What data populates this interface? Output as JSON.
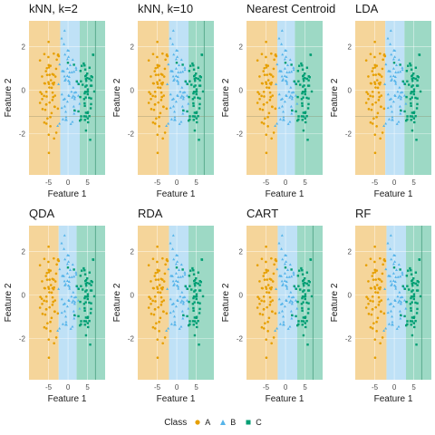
{
  "chart_data": {
    "type": "scatter",
    "colors": {
      "A": "#E69F00",
      "B": "#56B4E9",
      "C": "#009E73",
      "region_A": "#F5D59A",
      "region_B": "#BFE1F6",
      "region_C": "#9DD9C5",
      "grid": "#ffffff"
    },
    "xlabel": "Feature 1",
    "ylabel": "Feature 2",
    "xlim": [
      -10,
      9.5
    ],
    "ylim": [
      -3.9,
      3.2
    ],
    "x_ticks": [
      -5,
      0,
      5
    ],
    "y_ticks": [
      -2,
      0,
      2
    ],
    "x_tick_labels": [
      "-5",
      "0",
      "5"
    ],
    "y_tick_labels": [
      "-2",
      "0",
      "2"
    ],
    "legend": {
      "title": "Class",
      "position": "bottom",
      "entries": [
        {
          "label": "A",
          "shape": "circle"
        },
        {
          "label": "B",
          "shape": "triangle"
        },
        {
          "label": "C",
          "shape": "square"
        }
      ]
    },
    "classes": [
      {
        "name": "A",
        "x_center": -4.5,
        "x_spread": 1.3,
        "y_center": 0,
        "y_spread": 1.1
      },
      {
        "name": "B",
        "x_center": 0,
        "x_spread": 1.4,
        "y_center": 0,
        "y_spread": 1.1
      },
      {
        "name": "C",
        "x_center": 4.5,
        "x_spread": 1.3,
        "y_center": 0,
        "y_spread": 1.1
      }
    ],
    "panels": [
      {
        "title": "kNN, k=2",
        "boundaries": [
          -2,
          3
        ],
        "vline": 7,
        "hline": -1.2
      },
      {
        "title": "kNN, k=10",
        "boundaries": [
          -2,
          3
        ],
        "vline": 7,
        "hline": -1.2
      },
      {
        "title": "Nearest Centroid",
        "boundaries": [
          -2.1,
          2.4
        ],
        "vline": null,
        "hline": -1.2
      },
      {
        "title": "LDA",
        "boundaries": [
          -2.3,
          2.6
        ],
        "vline": null,
        "hline": -1.2
      },
      {
        "title": "QDA",
        "boundaries": [
          -2.4,
          2.2
        ],
        "vline": 7,
        "hline": null
      },
      {
        "title": "RDA",
        "boundaries": [
          -2,
          3
        ],
        "vline": null,
        "hline": null
      },
      {
        "title": "CART",
        "boundaries": [
          -2,
          3
        ],
        "vline": 7,
        "hline": null
      },
      {
        "title": "RF",
        "boundaries": [
          -2,
          3
        ],
        "vline": 7,
        "hline": null
      }
    ]
  }
}
